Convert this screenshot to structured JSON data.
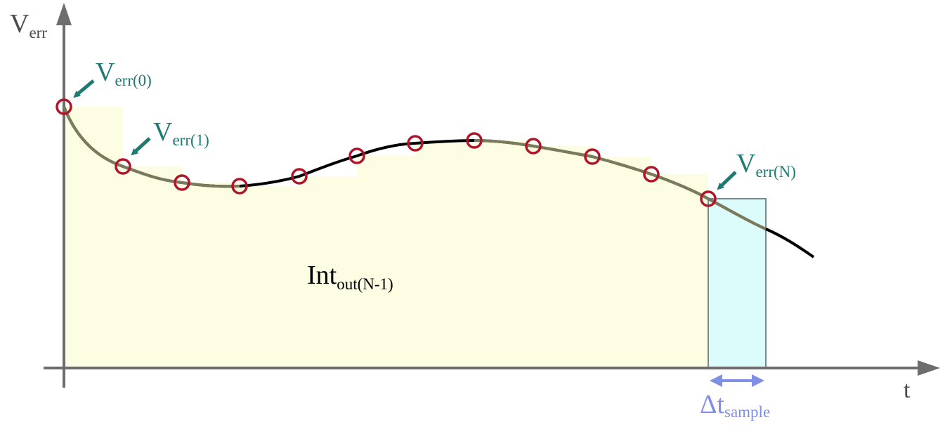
{
  "axes": {
    "y_label": {
      "main": "V",
      "sub": "err"
    },
    "x_label": "t"
  },
  "labels": {
    "v0": {
      "main": "V",
      "sub": "err(0)"
    },
    "v1": {
      "main": "V",
      "sub": "err(1)"
    },
    "vn": {
      "main": "V",
      "sub": "err(N)"
    },
    "integral": {
      "main": "Int",
      "sub": "out(N-1)"
    },
    "dt": {
      "main": "Δt",
      "sub": "sample"
    }
  },
  "colors": {
    "axis": "#6d6d6d",
    "curve": "#000000",
    "curve_over_fill": "#7a7a5c",
    "sample_marker": "#b0142a",
    "fill_previous": "#fdfde3",
    "fill_current": "#dcfcfc",
    "label_teal": "#1f7a72",
    "label_blue": "#7f8fe6"
  },
  "icons": [
    "arrow-icon",
    "double-arrow-icon",
    "sample-circle-icon"
  ]
}
